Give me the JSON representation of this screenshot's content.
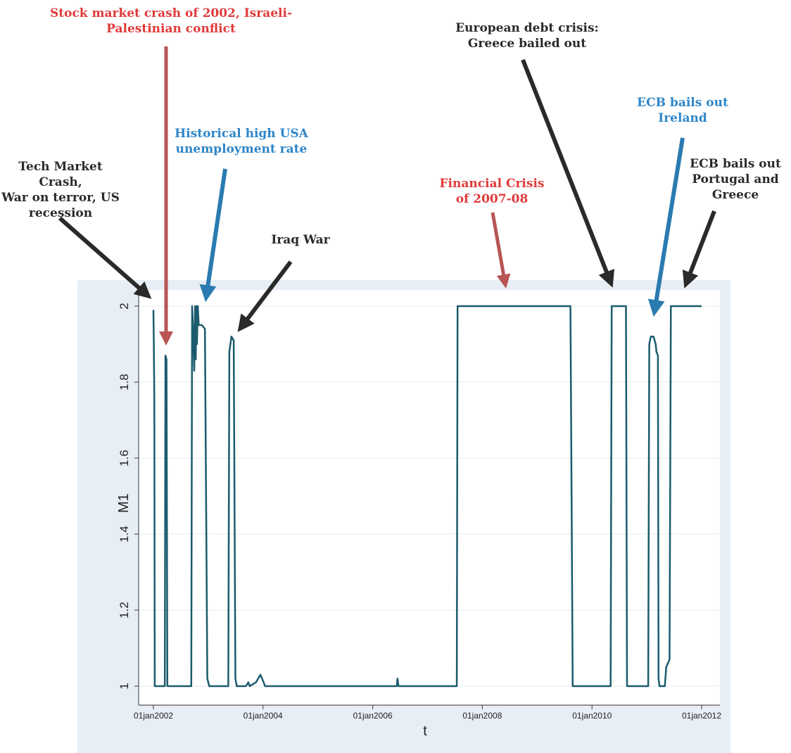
{
  "chart_data": {
    "type": "line",
    "xlabel": "t",
    "ylabel": "M1",
    "xlim": [
      "2002-01-01",
      "2012-01-01"
    ],
    "ylim": [
      1,
      2
    ],
    "x_ticks": [
      "01jan2002",
      "01jan2004",
      "01jan2006",
      "01jan2008",
      "01jan2010",
      "01jan2012"
    ],
    "y_ticks": [
      "1",
      "1.2",
      "1.4",
      "1.6",
      "1.8",
      "2"
    ],
    "grid": true,
    "series": [
      {
        "color": "#1b5b6e",
        "points": [
          [
            "2002-01-01",
            1.99
          ],
          [
            "2002-01-04",
            1.9
          ],
          [
            "2002-01-07",
            1.75
          ],
          [
            "2002-01-10",
            1.0
          ],
          [
            "2002-03-18",
            1.0
          ],
          [
            "2002-03-22",
            1.87
          ],
          [
            "2002-03-29",
            1.86
          ],
          [
            "2002-04-04",
            1.0
          ],
          [
            "2002-09-10",
            1.0
          ],
          [
            "2002-09-16",
            2.0
          ],
          [
            "2002-09-22",
            1.95
          ],
          [
            "2002-09-30",
            1.83
          ],
          [
            "2002-10-06",
            2.0
          ],
          [
            "2002-10-10",
            1.86
          ],
          [
            "2002-10-14",
            2.0
          ],
          [
            "2002-10-18",
            1.9
          ],
          [
            "2002-10-24",
            2.0
          ],
          [
            "2002-10-30",
            1.95
          ],
          [
            "2002-11-20",
            1.95
          ],
          [
            "2002-12-10",
            1.94
          ],
          [
            "2002-12-26",
            1.02
          ],
          [
            "2003-01-08",
            1.0
          ],
          [
            "2003-05-15",
            1.0
          ],
          [
            "2003-05-22",
            1.88
          ],
          [
            "2003-06-05",
            1.92
          ],
          [
            "2003-06-20",
            1.91
          ],
          [
            "2003-07-01",
            1.02
          ],
          [
            "2003-07-10",
            1.0
          ],
          [
            "2003-09-10",
            1.0
          ],
          [
            "2003-09-25",
            1.01
          ],
          [
            "2003-10-05",
            1.0
          ],
          [
            "2003-11-15",
            1.01
          ],
          [
            "2003-12-15",
            1.03
          ],
          [
            "2004-01-05",
            1.01
          ],
          [
            "2004-01-15",
            1.0
          ],
          [
            "2006-06-10",
            1.0
          ],
          [
            "2006-06-15",
            1.02
          ],
          [
            "2006-06-22",
            1.0
          ],
          [
            "2007-07-15",
            1.0
          ],
          [
            "2007-07-20",
            2.0
          ],
          [
            "2009-08-10",
            2.0
          ],
          [
            "2009-08-25",
            1.0
          ],
          [
            "2010-05-05",
            1.0
          ],
          [
            "2010-05-12",
            2.0
          ],
          [
            "2010-08-15",
            2.0
          ],
          [
            "2010-08-22",
            1.0
          ],
          [
            "2011-01-10",
            1.0
          ],
          [
            "2011-01-17",
            1.9
          ],
          [
            "2011-01-28",
            1.92
          ],
          [
            "2011-02-15",
            1.92
          ],
          [
            "2011-03-01",
            1.9
          ],
          [
            "2011-03-06",
            1.88
          ],
          [
            "2011-03-16",
            1.87
          ],
          [
            "2011-03-20",
            1.02
          ],
          [
            "2011-03-26",
            1.0
          ],
          [
            "2011-05-01",
            1.0
          ],
          [
            "2011-05-10",
            1.05
          ],
          [
            "2011-06-01",
            1.07
          ],
          [
            "2011-06-10",
            2.0
          ],
          [
            "2011-07-15",
            2.0
          ],
          [
            "2011-10-01",
            2.0
          ],
          [
            "2012-01-01",
            2.0
          ]
        ]
      }
    ],
    "annotations": [
      {
        "id": "tech-crash",
        "text": "Tech Market Crash,\nWar on terror, US\nrecession",
        "color": "#2a2a2a"
      },
      {
        "id": "stock-crash-2002",
        "text": "Stock market crash of 2002, Israeli-\nPalestinian conflict",
        "color": "#e03a3a"
      },
      {
        "id": "usa-unemployment",
        "text": "Historical high USA\nunemployment rate",
        "color": "#2e86c8"
      },
      {
        "id": "iraq-war",
        "text": "Iraq War",
        "color": "#2a2a2a"
      },
      {
        "id": "financial-crisis",
        "text": "Financial Crisis\nof 2007-08",
        "color": "#e03a3a"
      },
      {
        "id": "european-debt",
        "text": "European debt crisis:\nGreece bailed out",
        "color": "#2a2a2a"
      },
      {
        "id": "ecb-ireland",
        "text": "ECB bails out\nIreland",
        "color": "#2e86c8"
      },
      {
        "id": "ecb-portugal-greece",
        "text": "ECB bails out\nPortugal and\nGreece",
        "color": "#2a2a2a"
      }
    ]
  }
}
